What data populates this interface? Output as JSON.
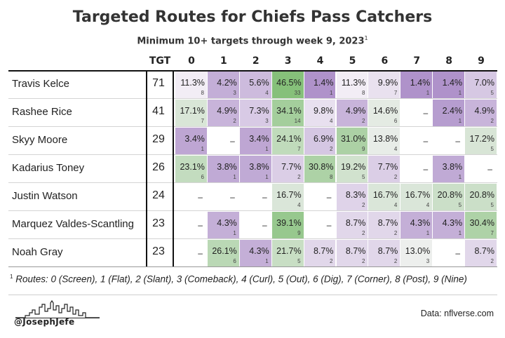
{
  "title": "Targeted Routes for Chiefs Pass Catchers",
  "subtitle": "Minimum 10+ targets through week 9, 2023",
  "subtitle_footnote_mark": "1",
  "columns": {
    "tgt_header": "TGT",
    "routes": [
      "0",
      "1",
      "2",
      "3",
      "4",
      "5",
      "6",
      "7",
      "8",
      "9"
    ]
  },
  "empty_marker": "–",
  "chart_data": {
    "type": "heatmap",
    "title": "Targeted Routes for Chiefs Pass Catchers",
    "x": [
      "0",
      "1",
      "2",
      "3",
      "4",
      "5",
      "6",
      "7",
      "8",
      "9"
    ],
    "rows": [
      {
        "player": "Travis Kelce",
        "tgt": 71,
        "pct": [
          "11.3%",
          "4.2%",
          "5.6%",
          "46.5%",
          "1.4%",
          "11.3%",
          "9.9%",
          "1.4%",
          "1.4%",
          "7.0%"
        ],
        "cnt": [
          "8",
          "3",
          "4",
          "33",
          "1",
          "8",
          "7",
          "1",
          "1",
          "5"
        ]
      },
      {
        "player": "Rashee Rice",
        "tgt": 41,
        "pct": [
          "17.1%",
          "4.9%",
          "7.3%",
          "34.1%",
          "9.8%",
          "4.9%",
          "14.6%",
          null,
          "2.4%",
          "4.9%"
        ],
        "cnt": [
          "7",
          "2",
          "3",
          "14",
          "4",
          "2",
          "6",
          null,
          "1",
          "2"
        ]
      },
      {
        "player": "Skyy Moore",
        "tgt": 29,
        "pct": [
          "3.4%",
          null,
          "3.4%",
          "24.1%",
          "6.9%",
          "31.0%",
          "13.8%",
          null,
          null,
          "17.2%"
        ],
        "cnt": [
          "1",
          null,
          "1",
          "7",
          "2",
          "9",
          "4",
          null,
          null,
          "5"
        ]
      },
      {
        "player": "Kadarius Toney",
        "tgt": 26,
        "pct": [
          "23.1%",
          "3.8%",
          "3.8%",
          "7.7%",
          "30.8%",
          "19.2%",
          "7.7%",
          null,
          "3.8%",
          null
        ],
        "cnt": [
          "6",
          "1",
          "1",
          "2",
          "8",
          "5",
          "2",
          null,
          "1",
          null
        ]
      },
      {
        "player": "Justin Watson",
        "tgt": 24,
        "pct": [
          null,
          null,
          null,
          "16.7%",
          null,
          "8.3%",
          "16.7%",
          "16.7%",
          "20.8%",
          "20.8%"
        ],
        "cnt": [
          null,
          null,
          null,
          "4",
          null,
          "2",
          "4",
          "4",
          "5",
          "5"
        ]
      },
      {
        "player": "Marquez Valdes-Scantling",
        "tgt": 23,
        "pct": [
          null,
          "4.3%",
          null,
          "39.1%",
          null,
          "8.7%",
          "8.7%",
          "4.3%",
          "4.3%",
          "30.4%"
        ],
        "cnt": [
          null,
          "1",
          null,
          "9",
          null,
          "2",
          "2",
          "1",
          "1",
          "7"
        ]
      },
      {
        "player": "Noah Gray",
        "tgt": 23,
        "pct": [
          null,
          "26.1%",
          "4.3%",
          "21.7%",
          "8.7%",
          "8.7%",
          "8.7%",
          "13.0%",
          null,
          "8.7%"
        ],
        "cnt": [
          null,
          "6",
          "1",
          "5",
          "2",
          "2",
          "2",
          "3",
          null,
          "2"
        ]
      }
    ],
    "colors": {
      "low": "#a382c2",
      "mid": "#f6f3f8",
      "high": "#86c07a"
    }
  },
  "footnote": {
    "mark": "1",
    "text": "Routes: 0 (Screen), 1 (Flat), 2 (Slant), 3 (Comeback), 4 (Curl), 5 (Out), 6 (Dig), 7 (Corner), 8 (Post), 9 (Nine)"
  },
  "branding": {
    "handle": "@JosephJefe",
    "logo_icon": "city-skyline-icon",
    "source": "Data: nflverse.com"
  }
}
